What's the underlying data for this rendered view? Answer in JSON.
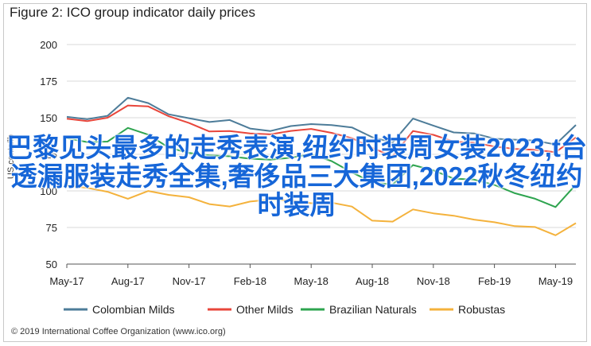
{
  "figure": {
    "title": "Figure 2: ICO group indicator daily prices",
    "footer": "© 2019 International Coffee Organization (www.ico.org)"
  },
  "overlay": {
    "text": "巴黎见头最多的走秀表演,纽约时装周女装2023,t台透漏服装走秀全集,奢侈品三大集团,2022秋冬纽约时装周"
  },
  "colors": {
    "colombian": "#4d7c99",
    "other": "#e8463b",
    "brazilian": "#2ea44f",
    "robustas": "#f4b23c",
    "grid": "#d9d9d9",
    "axis": "#555555",
    "overlay": "#1666d8"
  },
  "chart_data": {
    "type": "line",
    "title": "Figure 2: ICO group indicator daily prices",
    "xlabel": "",
    "ylabel": "US cents/lb",
    "ylim": [
      50,
      200
    ],
    "yticks": [
      50,
      75,
      100,
      125,
      150,
      175,
      200
    ],
    "xticks": [
      "May-17",
      "Aug-17",
      "Nov-17",
      "Feb-18",
      "May-18",
      "Aug-18",
      "Nov-18",
      "Feb-19",
      "May-19"
    ],
    "grid": true,
    "legend_position": "bottom",
    "x": [
      "May-17",
      "Jun-17",
      "Jul-17",
      "Aug-17",
      "Sep-17",
      "Oct-17",
      "Nov-17",
      "Dec-17",
      "Jan-18",
      "Feb-18",
      "Mar-18",
      "Apr-18",
      "May-18",
      "Jun-18",
      "Jul-18",
      "Aug-18",
      "Sep-18",
      "Oct-18",
      "Nov-18",
      "Dec-18",
      "Jan-19",
      "Feb-19",
      "Mar-19",
      "Apr-19",
      "May-19",
      "Jun-19"
    ],
    "series": [
      {
        "name": "Colombian Milds",
        "values": [
          152,
          150,
          152,
          164,
          160,
          152,
          149,
          146,
          147,
          144,
          142,
          145,
          146,
          145,
          143,
          136,
          132,
          148,
          146,
          141,
          140,
          136,
          135,
          134,
          131,
          144
        ]
      },
      {
        "name": "Other Milds",
        "values": [
          150,
          148,
          150,
          158,
          157,
          150,
          145,
          142,
          142,
          140,
          139,
          141,
          142,
          139,
          135,
          128,
          125,
          142,
          139,
          134,
          133,
          130,
          128,
          127,
          125,
          138
        ]
      },
      {
        "name": "Brazilian Naturals",
        "values": [
          136,
          133,
          133,
          142,
          137,
          131,
          127,
          125,
          124,
          122,
          121,
          122,
          124,
          119,
          114,
          107,
          105,
          118,
          114,
          108,
          107,
          103,
          97,
          96,
          90,
          105
        ]
      },
      {
        "name": "Robustas",
        "values": [
          103,
          101,
          98,
          96,
          101,
          98,
          96,
          91,
          89,
          92,
          93,
          92,
          93,
          93,
          90,
          80,
          79,
          87,
          84,
          82,
          79,
          80,
          77,
          76,
          70,
          78
        ]
      }
    ]
  }
}
